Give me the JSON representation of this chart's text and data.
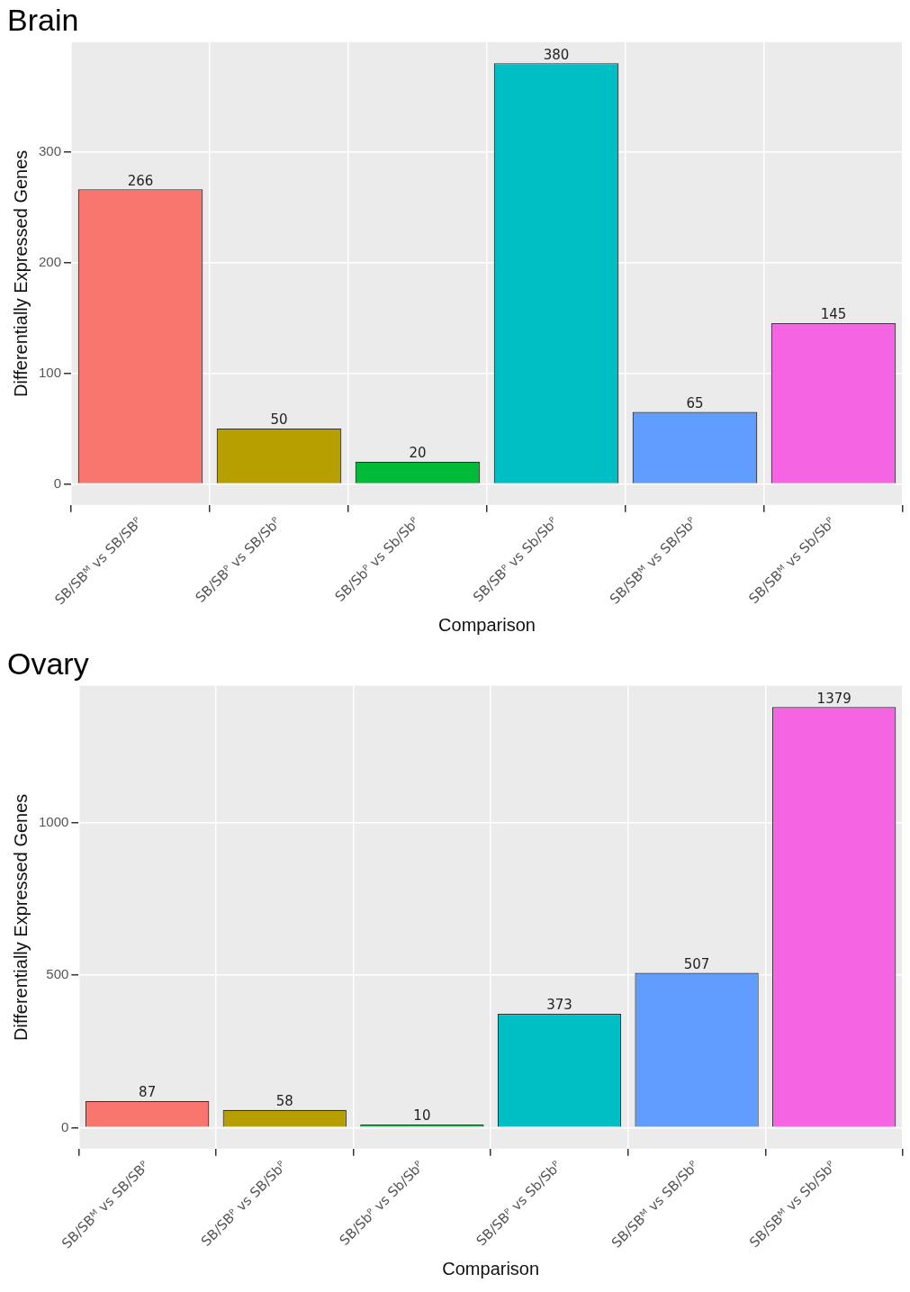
{
  "chart_data": [
    {
      "type": "bar",
      "title": "Brain",
      "xlabel": "Comparison",
      "ylabel": "Differentially Expressed Genes",
      "categories": [
        "SB/SBᴹ vs SB/SBᴾ",
        "SB/SBᴾ vs SB/Sbᴾ",
        "SB/Sbᴾ vs Sb/Sbᴾ",
        "SB/SBᴾ vs Sb/Sbᴾ",
        "SB/SBᴹ vs SB/Sbᴾ",
        "SB/SBᴹ vs Sb/Sbᴾ"
      ],
      "values": [
        266,
        50,
        20,
        380,
        65,
        145
      ],
      "colors": [
        "#f8766d",
        "#b79f00",
        "#00ba38",
        "#00bfc4",
        "#619cff",
        "#f564e3"
      ],
      "ylim": [
        -19,
        399
      ],
      "yticks": [
        0,
        100,
        200,
        300
      ],
      "grid": true,
      "data_labels": true,
      "legend": false
    },
    {
      "type": "bar",
      "title": "Ovary",
      "xlabel": "Comparison",
      "ylabel": "Differentially Expressed Genes",
      "categories": [
        "SB/SBᴹ vs SB/SBᴾ",
        "SB/SBᴾ vs SB/Sbᴾ",
        "SB/Sbᴾ vs Sb/Sbᴾ",
        "SB/SBᴾ vs Sb/Sbᴾ",
        "SB/SBᴹ vs SB/Sbᴾ",
        "SB/SBᴹ vs Sb/Sbᴾ"
      ],
      "values": [
        87,
        58,
        10,
        373,
        507,
        1379
      ],
      "colors": [
        "#f8766d",
        "#b79f00",
        "#00ba38",
        "#00bfc4",
        "#619cff",
        "#f564e3"
      ],
      "ylim": [
        -69,
        1448
      ],
      "yticks": [
        0,
        500,
        1000
      ],
      "grid": true,
      "data_labels": true,
      "legend": false
    }
  ]
}
